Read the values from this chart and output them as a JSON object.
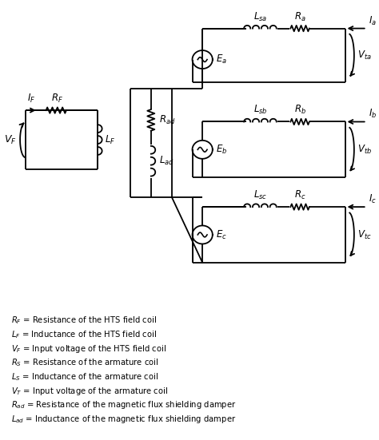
{
  "bg_color": "#ffffff",
  "line_color": "#000000",
  "legend_lines": [
    "$R_F$ = Resistance of the HTS field coil",
    "$L_F$ = Inductance of the HTS field coil",
    "$V_F$ = Input voltage of the HTS field coil",
    "$R_S$ = Resistance of the armature coil",
    "$L_S$ = Inductance of the armature coil",
    "$V_T$ = Input voltage of the armature coil",
    "$R_{ad}$ = Resistance of the magnetic flux shielding damper",
    "$L_{ad}$ = Inductance of the magnetic flux shielding damper"
  ],
  "fig_w": 4.74,
  "fig_h": 5.51,
  "dpi": 100
}
